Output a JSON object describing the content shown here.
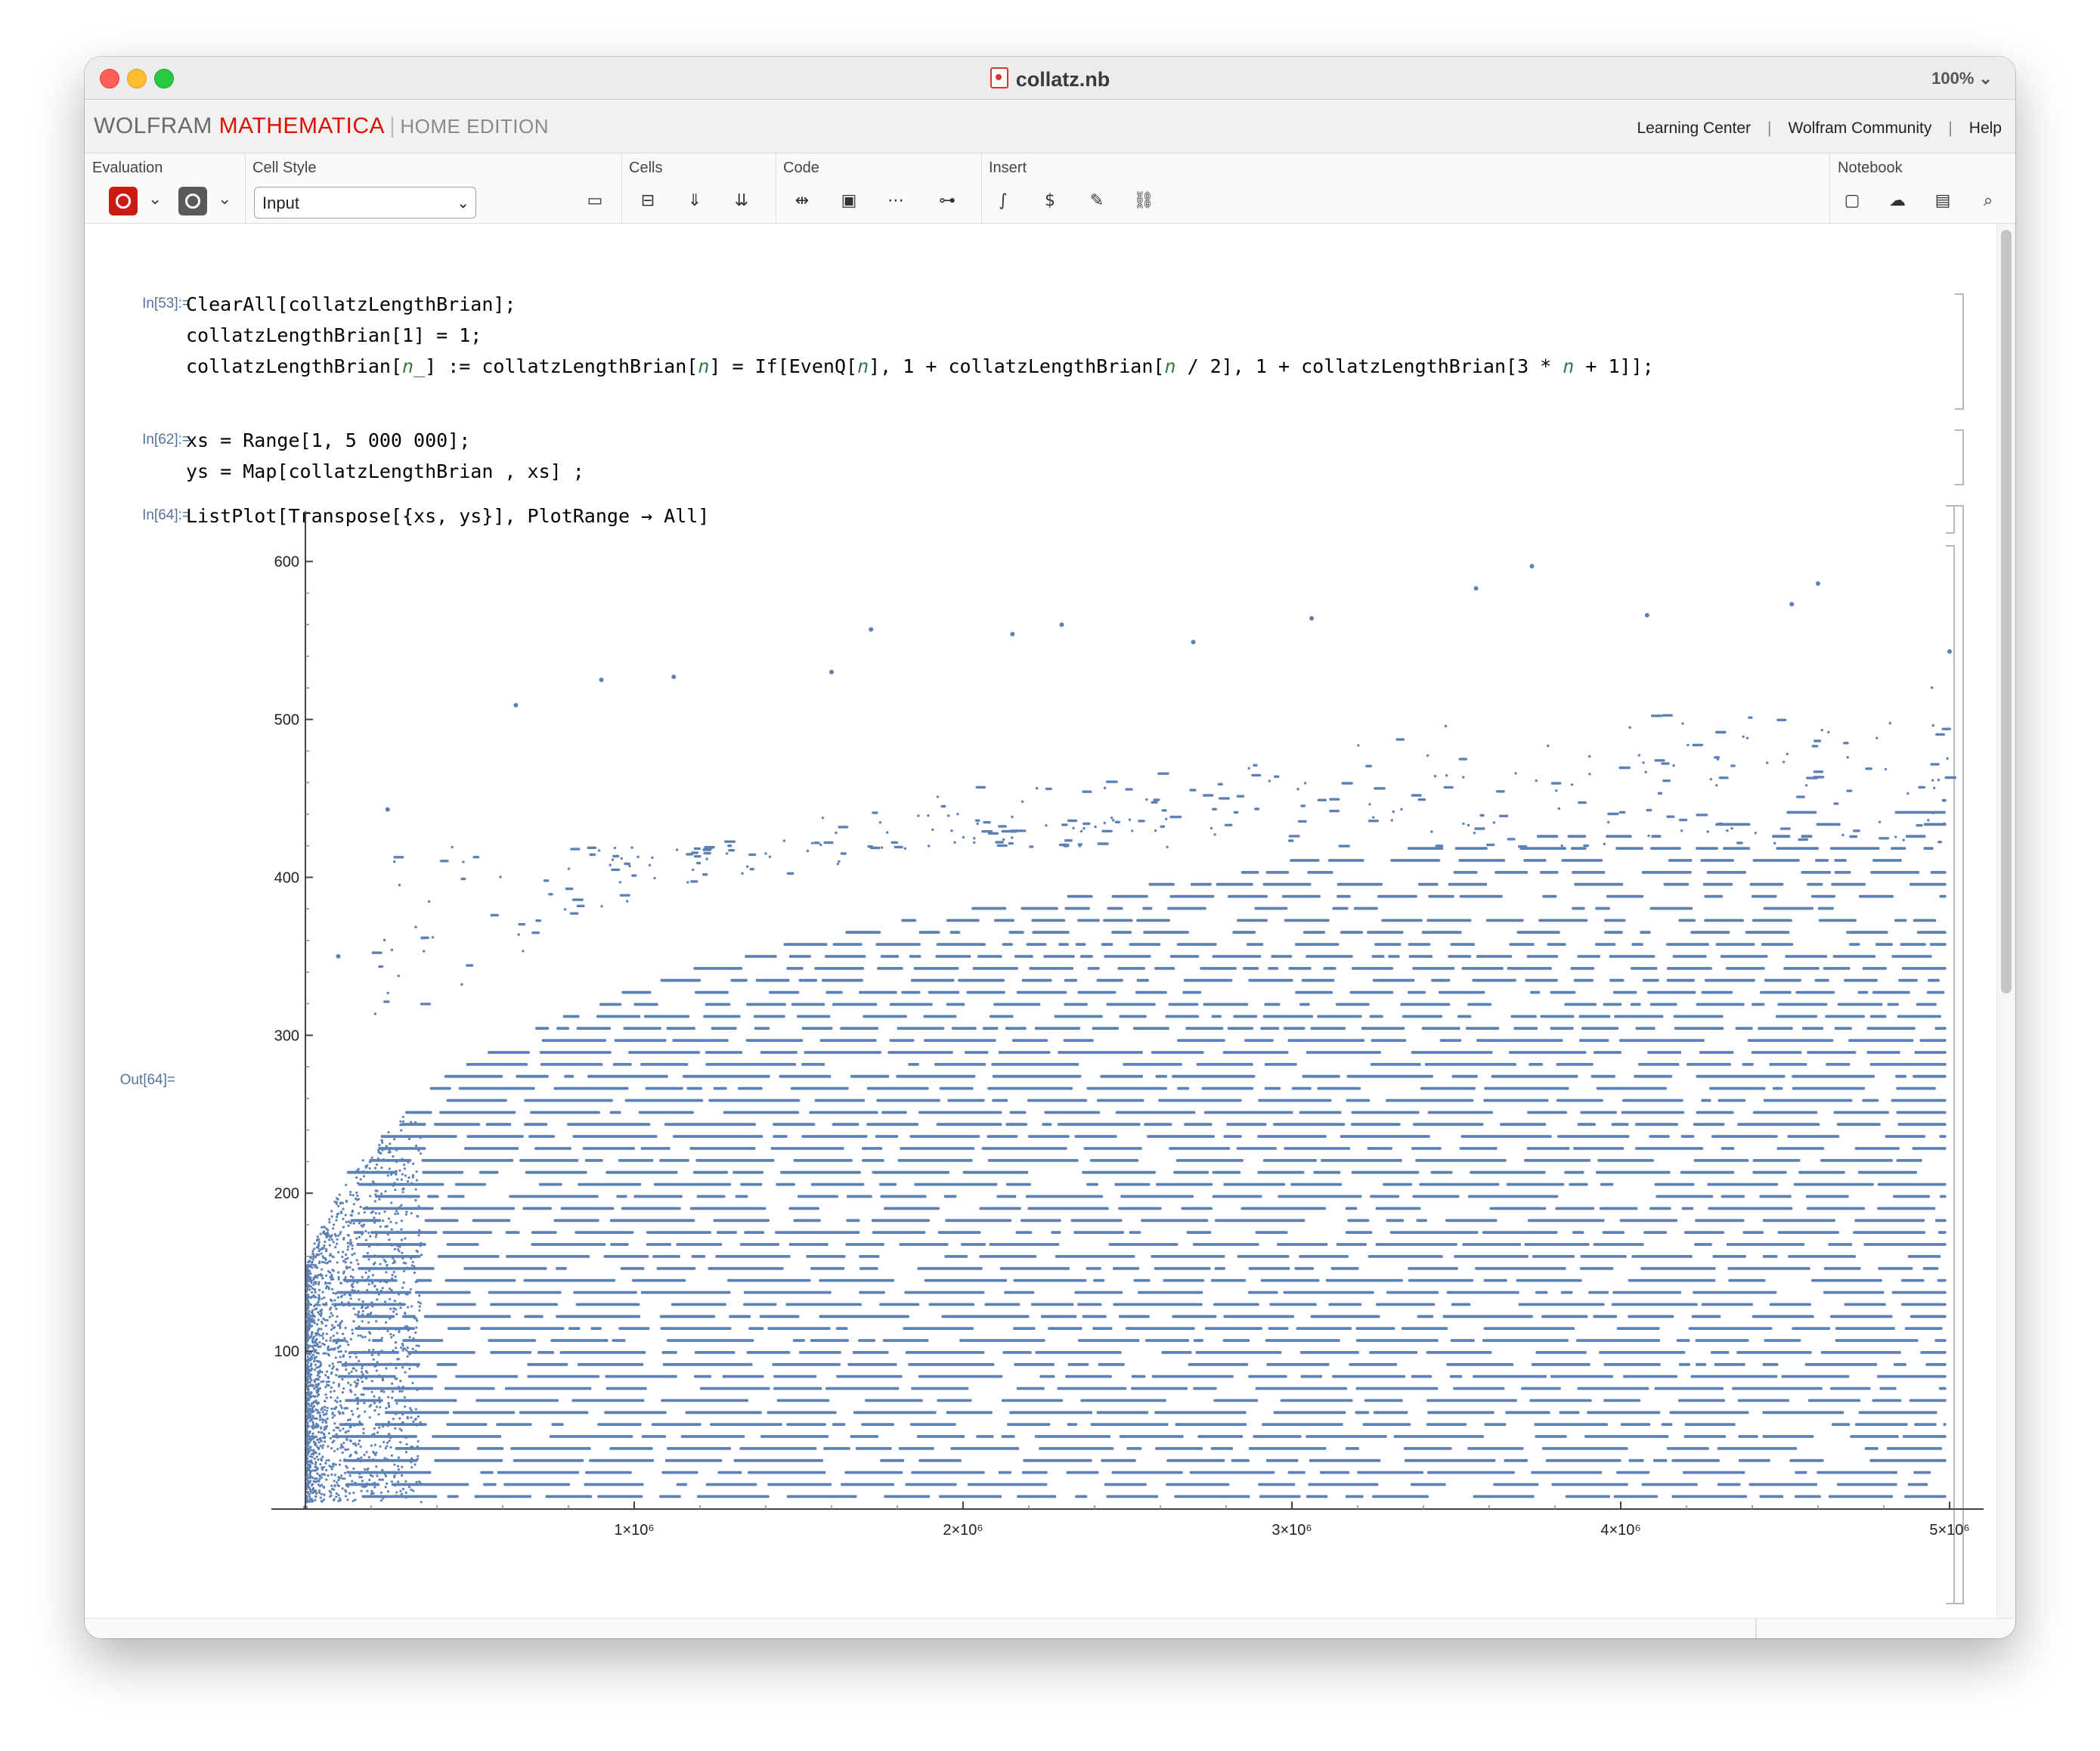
{
  "window": {
    "title": "collatz.nb",
    "zoom": "100% ⌄"
  },
  "brand": {
    "wolfram": "WOLFRAM",
    "mathematica": "MATHEMATICA",
    "edition": "HOME EDITION"
  },
  "links": [
    "Learning Center",
    "Wolfram Community",
    "Help"
  ],
  "toolbar": {
    "groups": {
      "evaluation": "Evaluation",
      "cell_style": "Cell Style",
      "cells": "Cells",
      "code": "Code",
      "insert": "Insert",
      "notebook": "Notebook"
    },
    "cell_style_value": "Input"
  },
  "cells": {
    "in53_label": "In[53]:=",
    "in53_line1": "ClearAll[collatzLengthBrian];",
    "in53_line2": "collatzLengthBrian[1] = 1;",
    "in53_line3_a": "collatzLengthBrian[",
    "in53_line3_b": "n_",
    "in53_line3_c": "] := collatzLengthBrian[",
    "in53_line3_d": "n",
    "in53_line3_e": "] = If[EvenQ[",
    "in53_line3_f": "n",
    "in53_line3_g": "], 1 + collatzLengthBrian[",
    "in53_line3_h": "n",
    "in53_line3_i": " / 2], 1 + collatzLengthBrian[3 * ",
    "in53_line3_j": "n",
    "in53_line3_k": " + 1]];",
    "in62_label": "In[62]:=",
    "in62_line1": "xs = Range[1, 5 000 000];",
    "in62_line2": "ys = Map[collatzLengthBrian , xs] ;",
    "in64_label": "In[64]:=",
    "in64_line1": "ListPlot[Transpose[{xs, ys}], PlotRange → All]",
    "out64_label": "Out[64]="
  },
  "chart_data": {
    "type": "scatter",
    "title": "",
    "xlabel": "",
    "ylabel": "",
    "xlim": [
      0,
      5000000
    ],
    "ylim": [
      0,
      630
    ],
    "x_ticks": [
      "1×10⁶",
      "2×10⁶",
      "3×10⁶",
      "4×10⁶",
      "5×10⁶"
    ],
    "x_tick_values": [
      1000000,
      2000000,
      3000000,
      4000000,
      5000000
    ],
    "y_ticks": [
      "100",
      "200",
      "300",
      "400",
      "500",
      "600"
    ],
    "y_tick_values": [
      100,
      200,
      300,
      400,
      500,
      600
    ],
    "point_color": "#5e81b5",
    "grid": false,
    "series": [
      {
        "points_sample": [
          [
            0,
            1
          ],
          [
            100000,
            350
          ],
          [
            250000,
            443
          ],
          [
            640000,
            509
          ],
          [
            900000,
            525
          ],
          [
            1120000,
            527
          ],
          [
            1600000,
            530
          ],
          [
            1720000,
            557
          ],
          [
            2150000,
            554
          ],
          [
            2300000,
            560
          ],
          [
            2700000,
            549
          ],
          [
            3060000,
            564
          ],
          [
            3560000,
            583
          ],
          [
            3730000,
            597
          ],
          [
            4080000,
            566
          ],
          [
            4520000,
            573
          ],
          [
            4600000,
            586
          ],
          [
            5000000,
            543
          ]
        ]
      }
    ]
  }
}
